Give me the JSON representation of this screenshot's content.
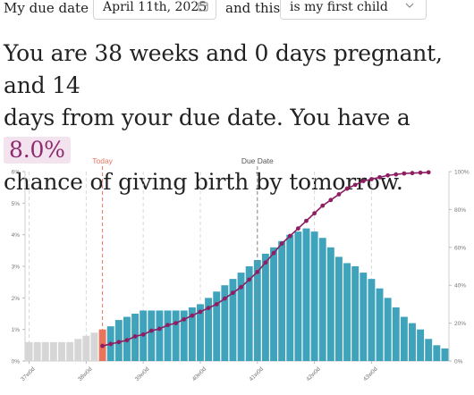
{
  "form": {
    "due_label": "My due date is",
    "due_date_value": "April 11th, 2025",
    "and_this_label": "and this",
    "child_select_value": "is my first child"
  },
  "summary": {
    "line1": "You are 38 weeks and 0 days pregnant, and 14",
    "line2_prefix": "days from your due date. You have a",
    "percent": "8.0%",
    "line3": "chance of giving birth by tomorrow."
  },
  "colors": {
    "bar_past": "#d6d6d6",
    "bar_today": "#e8745c",
    "bar_future": "#3fa3bb",
    "line": "#8e1e62",
    "today_marker": "#e8745c",
    "due_marker": "#8a8a8a"
  },
  "chart_data": {
    "type": "bar",
    "x_tick_labels": [
      "37w0d",
      "38w0d",
      "39w0d",
      "40w0d",
      "41w0d",
      "42w0d",
      "43w0d"
    ],
    "left_axis": {
      "ticks": [
        "0%",
        "1%",
        "2%",
        "3%",
        "4%",
        "5%",
        "6%"
      ],
      "ylim": [
        0,
        6
      ]
    },
    "right_axis": {
      "ticks": [
        "0%",
        "20%",
        "40%",
        "60%",
        "80%",
        "100%"
      ],
      "ylim": [
        0,
        100
      ]
    },
    "markers": {
      "today_label": "Today",
      "due_label": "Due Date",
      "today_index": 9,
      "due_index": 28
    },
    "daily_probability_pct": [
      0.6,
      0.6,
      0.6,
      0.6,
      0.6,
      0.6,
      0.7,
      0.8,
      0.9,
      1.0,
      1.1,
      1.3,
      1.4,
      1.5,
      1.6,
      1.6,
      1.6,
      1.6,
      1.6,
      1.6,
      1.7,
      1.8,
      2.0,
      2.2,
      2.4,
      2.6,
      2.8,
      3.0,
      3.2,
      3.4,
      3.6,
      3.8,
      4.0,
      4.1,
      4.2,
      4.1,
      3.9,
      3.6,
      3.3,
      3.1,
      3.0,
      2.8,
      2.6,
      2.3,
      2.0,
      1.7,
      1.4,
      1.2,
      1.0,
      0.7,
      0.5,
      0.4
    ],
    "cumulative_pct": [
      8,
      9,
      10,
      11,
      13,
      14,
      16,
      17,
      19,
      20,
      22,
      24,
      26,
      28,
      30,
      33,
      36,
      39,
      43,
      47,
      52,
      57,
      62,
      66,
      70,
      74,
      78,
      82,
      85,
      88,
      91,
      93,
      95,
      96,
      97,
      98,
      98.5,
      99,
      99.2,
      99.4,
      99.6
    ]
  }
}
